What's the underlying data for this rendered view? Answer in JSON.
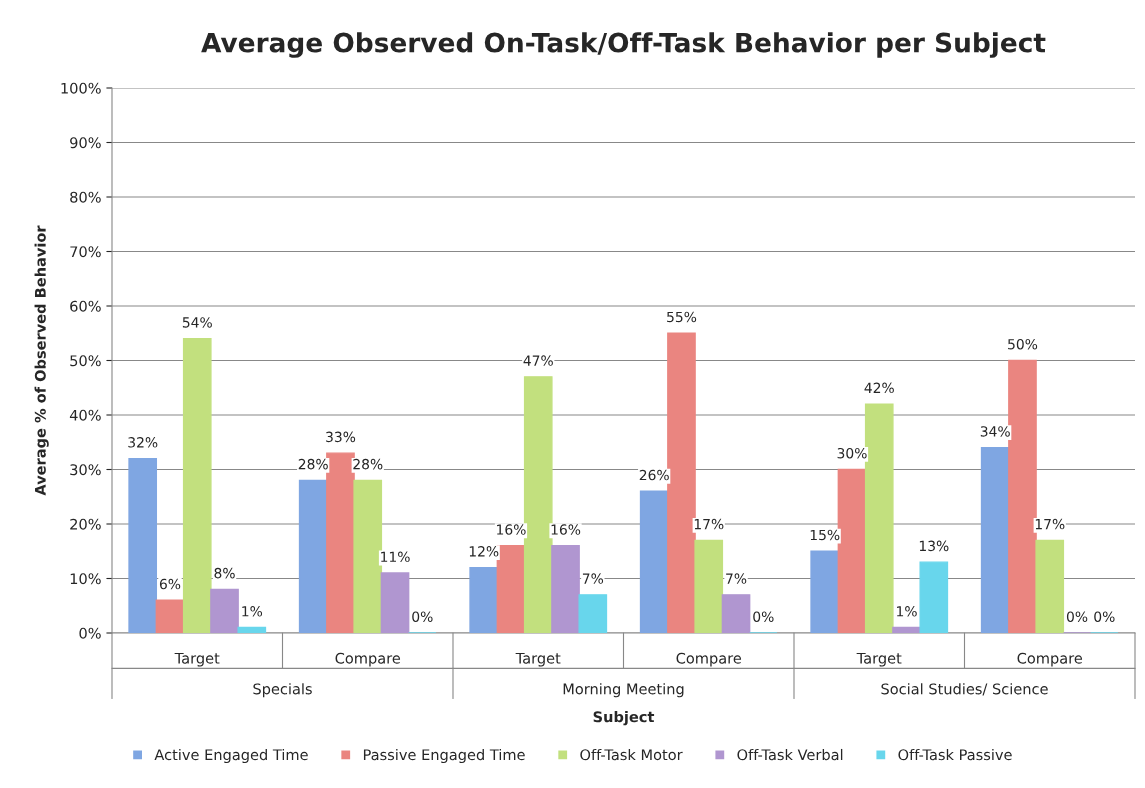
{
  "chart_data": {
    "type": "bar",
    "title": "Average Observed On-Task/Off-Task Behavior per Subject",
    "xlabel": "Subject",
    "ylabel": "Average % of Observed Behavior",
    "categories": [
      "Target",
      "Compare",
      "Target",
      "Compare",
      "Target",
      "Compare"
    ],
    "annotations": [
      "Specials",
      "Morning Meeting",
      "Social Studies/ Science"
    ],
    "series": [
      {
        "name": "Active Engaged Time",
        "color": "#7fa6e2",
        "values": [
          32,
          28,
          12,
          26,
          15,
          34
        ],
        "value_labels": [
          "32%",
          "28%",
          "12%",
          "26%",
          "15%",
          "34%"
        ]
      },
      {
        "name": "Passive Engaged Time",
        "color": "#ea8580",
        "values": [
          6,
          33,
          16,
          55,
          30,
          50
        ],
        "value_labels": [
          "6%",
          "33%",
          "16%",
          "55%",
          "30%",
          "50%"
        ]
      },
      {
        "name": "Off-Task Motor",
        "color": "#c2e07e",
        "values": [
          54,
          28,
          47,
          17,
          42,
          17
        ],
        "value_labels": [
          "54%",
          "28%",
          "47%",
          "17%",
          "42%",
          "17%"
        ]
      },
      {
        "name": "Off-Task Verbal",
        "color": "#b096d0",
        "values": [
          8,
          11,
          16,
          7,
          1,
          0
        ],
        "value_labels": [
          "8%",
          "11%",
          "16%",
          "7%",
          "1%",
          "0%"
        ]
      },
      {
        "name": "Off-Task Passive",
        "color": "#68d6ec",
        "values": [
          1,
          0,
          7,
          0,
          13,
          0
        ],
        "value_labels": [
          "1%",
          "0%",
          "7%",
          "0%",
          "13%",
          "0%"
        ]
      }
    ],
    "ylim": [
      0,
      100
    ],
    "yticks": [
      {
        "value": 0,
        "label": "0%"
      },
      {
        "value": 10,
        "label": "10%"
      },
      {
        "value": 20,
        "label": "20%"
      },
      {
        "value": 30,
        "label": "30%"
      },
      {
        "value": 40,
        "label": "40%"
      },
      {
        "value": 50,
        "label": "50%"
      },
      {
        "value": 60,
        "label": "60%"
      },
      {
        "value": 70,
        "label": "70%"
      },
      {
        "value": 80,
        "label": "80%"
      },
      {
        "value": 90,
        "label": "90%"
      },
      {
        "value": 100,
        "label": "100%"
      }
    ],
    "grid": "y",
    "legend": "bottom"
  }
}
